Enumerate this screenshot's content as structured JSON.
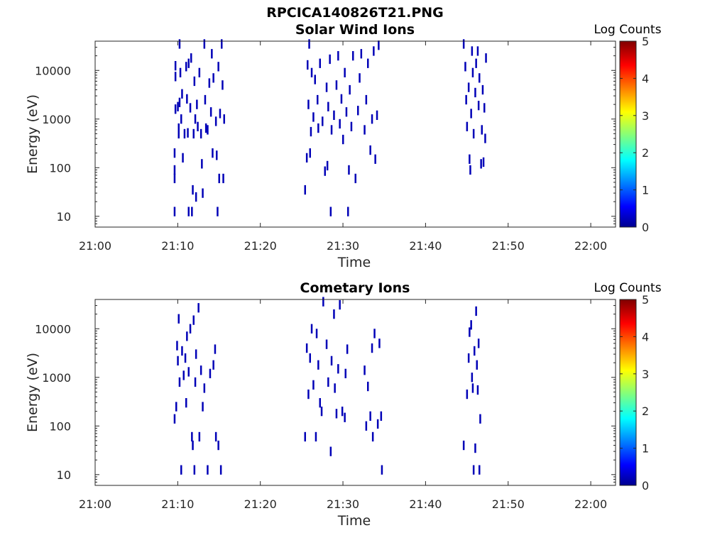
{
  "figure_title": "RPCICA140826T21.PNG",
  "chart_data": [
    {
      "type": "heatmap",
      "title": "Solar Wind Ions",
      "xlabel": "Time",
      "ylabel": "Energy (eV)",
      "x_tick_labels": [
        "21:00",
        "21:10",
        "21:20",
        "21:30",
        "21:40",
        "21:50",
        "22:00"
      ],
      "x_range_minutes": [
        0,
        63
      ],
      "y_scale": "log",
      "y_range": [
        6,
        40000
      ],
      "y_tick_values": [
        10,
        100,
        1000,
        10000
      ],
      "y_tick_labels": [
        "10",
        "100",
        "1000",
        "10000"
      ],
      "colorbar_label": "Log Counts",
      "colorbar_range": [
        0,
        5
      ],
      "colorbar_tick_labels": [
        "0",
        "1",
        "2",
        "3",
        "4",
        "5"
      ],
      "colormap": "jet",
      "grid": false,
      "points": [
        [
          9.6,
          12.5,
          0.2
        ],
        [
          9.6,
          60,
          0.2
        ],
        [
          9.6,
          90,
          0.2
        ],
        [
          9.6,
          200,
          0.2
        ],
        [
          9.7,
          1600,
          0.2
        ],
        [
          9.7,
          7500,
          0.2
        ],
        [
          9.7,
          12500,
          0.2
        ],
        [
          10.0,
          1800,
          0.2
        ],
        [
          10.1,
          650,
          0.2
        ],
        [
          10.1,
          500,
          0.2
        ],
        [
          10.2,
          35000,
          0.2
        ],
        [
          10.2,
          2200,
          0.2
        ],
        [
          10.3,
          9000,
          0.2
        ],
        [
          10.4,
          1000,
          0.2
        ],
        [
          10.5,
          3300,
          0.2
        ],
        [
          10.6,
          160,
          0.2
        ],
        [
          10.8,
          500,
          0.2
        ],
        [
          11.0,
          12000,
          0.2
        ],
        [
          11.1,
          2600,
          0.2
        ],
        [
          11.2,
          520,
          0.2
        ],
        [
          11.3,
          14000,
          0.2
        ],
        [
          11.3,
          12.5,
          0.2
        ],
        [
          11.5,
          1700,
          0.2
        ],
        [
          11.6,
          18000,
          0.2
        ],
        [
          11.7,
          12.5,
          0.2
        ],
        [
          11.8,
          35,
          0.2
        ],
        [
          11.9,
          500,
          0.2
        ],
        [
          12.0,
          6000,
          0.2
        ],
        [
          12.1,
          1000,
          0.2
        ],
        [
          12.2,
          25,
          0.2
        ],
        [
          12.3,
          2000,
          0.2
        ],
        [
          12.4,
          700,
          0.2
        ],
        [
          12.6,
          9000,
          0.2
        ],
        [
          12.8,
          500,
          0.2
        ],
        [
          12.9,
          120,
          0.2
        ],
        [
          13.0,
          30,
          0.2
        ],
        [
          13.2,
          35000,
          0.2
        ],
        [
          13.3,
          2500,
          0.2
        ],
        [
          13.4,
          650,
          0.2
        ],
        [
          13.6,
          600,
          0.3
        ],
        [
          13.8,
          5500,
          0.2
        ],
        [
          14.0,
          1400,
          0.2
        ],
        [
          14.1,
          22000,
          0.2
        ],
        [
          14.2,
          200,
          0.2
        ],
        [
          14.3,
          7000,
          0.2
        ],
        [
          14.6,
          900,
          0.2
        ],
        [
          14.7,
          180,
          0.2
        ],
        [
          14.8,
          12.5,
          0.2
        ],
        [
          14.9,
          12000,
          0.2
        ],
        [
          15.0,
          60,
          0.2
        ],
        [
          15.1,
          1300,
          0.2
        ],
        [
          15.3,
          35000,
          0.2
        ],
        [
          15.4,
          5000,
          0.2
        ],
        [
          15.5,
          60,
          0.2
        ],
        [
          15.6,
          1000,
          0.2
        ],
        [
          25.4,
          35,
          0.2
        ],
        [
          25.6,
          160,
          0.2
        ],
        [
          25.7,
          13000,
          0.2
        ],
        [
          25.8,
          2000,
          0.2
        ],
        [
          25.9,
          35000,
          0.2
        ],
        [
          26.0,
          200,
          0.2
        ],
        [
          26.1,
          550,
          0.2
        ],
        [
          26.2,
          9000,
          0.2
        ],
        [
          26.4,
          1100,
          0.2
        ],
        [
          26.6,
          6500,
          0.2
        ],
        [
          26.9,
          2500,
          0.2
        ],
        [
          27.0,
          650,
          0.2
        ],
        [
          27.2,
          14000,
          0.2
        ],
        [
          27.5,
          900,
          0.2
        ],
        [
          27.8,
          85,
          0.2
        ],
        [
          28.0,
          4500,
          0.2
        ],
        [
          28.1,
          110,
          0.2
        ],
        [
          28.2,
          1800,
          0.2
        ],
        [
          28.4,
          17000,
          0.2
        ],
        [
          28.5,
          12.5,
          0.2
        ],
        [
          28.6,
          600,
          0.2
        ],
        [
          28.9,
          1200,
          0.2
        ],
        [
          29.2,
          5000,
          0.2
        ],
        [
          29.4,
          20000,
          0.2
        ],
        [
          29.6,
          800,
          0.2
        ],
        [
          29.8,
          2600,
          0.2
        ],
        [
          30.0,
          380,
          0.2
        ],
        [
          30.2,
          9000,
          0.2
        ],
        [
          30.4,
          1400,
          0.2
        ],
        [
          30.6,
          12.5,
          0.2
        ],
        [
          30.7,
          90,
          0.2
        ],
        [
          30.8,
          4000,
          0.2
        ],
        [
          31.0,
          700,
          0.2
        ],
        [
          31.2,
          20000,
          0.2
        ],
        [
          31.5,
          60,
          0.2
        ],
        [
          31.8,
          1500,
          0.2
        ],
        [
          32.0,
          7000,
          0.2
        ],
        [
          32.2,
          22000,
          0.2
        ],
        [
          32.6,
          600,
          0.2
        ],
        [
          32.8,
          2500,
          0.2
        ],
        [
          33.0,
          14000,
          0.2
        ],
        [
          33.3,
          230,
          0.2
        ],
        [
          33.5,
          1000,
          0.2
        ],
        [
          33.7,
          25000,
          0.2
        ],
        [
          33.9,
          150,
          0.2
        ],
        [
          34.1,
          1200,
          0.2
        ],
        [
          34.3,
          33000,
          0.2
        ],
        [
          44.6,
          35000,
          0.2
        ],
        [
          44.8,
          12000,
          0.2
        ],
        [
          44.9,
          2500,
          0.2
        ],
        [
          45.0,
          700,
          0.2
        ],
        [
          45.2,
          4500,
          0.2
        ],
        [
          45.3,
          150,
          0.2
        ],
        [
          45.4,
          90,
          0.2
        ],
        [
          45.5,
          1300,
          0.2
        ],
        [
          45.6,
          25000,
          0.2
        ],
        [
          45.7,
          9000,
          0.2
        ],
        [
          45.8,
          500,
          0.2
        ],
        [
          46.0,
          3500,
          0.2
        ],
        [
          46.1,
          14000,
          0.2
        ],
        [
          46.3,
          25000,
          0.2
        ],
        [
          46.4,
          1900,
          0.2
        ],
        [
          46.5,
          7000,
          0.2
        ],
        [
          46.7,
          120,
          0.2
        ],
        [
          46.8,
          600,
          0.2
        ],
        [
          46.9,
          4000,
          0.2
        ],
        [
          47.0,
          130,
          0.2
        ],
        [
          47.1,
          1700,
          0.2
        ],
        [
          47.2,
          400,
          0.2
        ],
        [
          47.3,
          18000,
          0.2
        ]
      ]
    },
    {
      "type": "heatmap",
      "title": "Cometary Ions",
      "xlabel": "Time",
      "ylabel": "Energy (eV)",
      "x_tick_labels": [
        "21:00",
        "21:10",
        "21:20",
        "21:30",
        "21:40",
        "21:50",
        "22:00"
      ],
      "x_range_minutes": [
        0,
        63
      ],
      "y_scale": "log",
      "y_range": [
        6,
        40000
      ],
      "y_tick_values": [
        10,
        100,
        1000,
        10000
      ],
      "y_tick_labels": [
        "10",
        "100",
        "1000",
        "10000"
      ],
      "colorbar_label": "Log Counts",
      "colorbar_range": [
        0,
        5
      ],
      "colorbar_tick_labels": [
        "0",
        "1",
        "2",
        "3",
        "4",
        "5"
      ],
      "colormap": "jet",
      "grid": false,
      "points": [
        [
          9.6,
          140,
          0.2
        ],
        [
          9.8,
          250,
          0.2
        ],
        [
          9.9,
          4500,
          0.2
        ],
        [
          10.0,
          2200,
          0.2
        ],
        [
          10.1,
          16000,
          0.2
        ],
        [
          10.2,
          800,
          0.2
        ],
        [
          10.4,
          12.5,
          0.2
        ],
        [
          10.5,
          3500,
          0.2
        ],
        [
          10.7,
          1100,
          0.2
        ],
        [
          10.9,
          2500,
          0.2
        ],
        [
          11.0,
          300,
          0.2
        ],
        [
          11.1,
          7000,
          0.2
        ],
        [
          11.3,
          1300,
          0.2
        ],
        [
          11.5,
          10000,
          0.2
        ],
        [
          11.7,
          60,
          0.2
        ],
        [
          11.8,
          40,
          0.2
        ],
        [
          11.9,
          15000,
          0.2
        ],
        [
          12.0,
          12.5,
          0.2
        ],
        [
          12.1,
          800,
          0.2
        ],
        [
          12.2,
          3000,
          0.2
        ],
        [
          12.5,
          27000,
          0.2
        ],
        [
          12.6,
          60,
          0.2
        ],
        [
          12.8,
          1400,
          0.2
        ],
        [
          13.0,
          250,
          0.2
        ],
        [
          13.2,
          600,
          0.2
        ],
        [
          13.6,
          12.5,
          0.2
        ],
        [
          13.9,
          1200,
          0.2
        ],
        [
          14.3,
          1800,
          0.2
        ],
        [
          14.5,
          3800,
          0.2
        ],
        [
          14.6,
          60,
          0.2
        ],
        [
          14.9,
          40,
          0.2
        ],
        [
          15.2,
          12.5,
          0.2
        ],
        [
          25.4,
          60,
          0.2
        ],
        [
          25.6,
          4000,
          0.2
        ],
        [
          25.8,
          450,
          0.2
        ],
        [
          26.0,
          2500,
          0.2
        ],
        [
          26.2,
          10000,
          0.2
        ],
        [
          26.4,
          700,
          0.2
        ],
        [
          26.7,
          60,
          0.2
        ],
        [
          26.8,
          8000,
          0.2
        ],
        [
          27.0,
          1800,
          0.2
        ],
        [
          27.2,
          300,
          0.2
        ],
        [
          27.4,
          200,
          0.2
        ],
        [
          27.6,
          36000,
          0.2
        ],
        [
          28.0,
          4800,
          0.2
        ],
        [
          28.2,
          800,
          0.2
        ],
        [
          28.5,
          30,
          0.2
        ],
        [
          28.6,
          2200,
          0.2
        ],
        [
          28.9,
          20000,
          0.2
        ],
        [
          29.0,
          600,
          0.2
        ],
        [
          29.2,
          180,
          0.2
        ],
        [
          29.4,
          1500,
          0.2
        ],
        [
          29.6,
          31000,
          0.2
        ],
        [
          29.9,
          200,
          0.2
        ],
        [
          30.2,
          150,
          0.2
        ],
        [
          30.5,
          3800,
          0.2
        ],
        [
          30.3,
          1200,
          0.2
        ],
        [
          32.6,
          1400,
          0.2
        ],
        [
          32.8,
          100,
          0.2
        ],
        [
          33.0,
          650,
          0.2
        ],
        [
          33.3,
          160,
          0.2
        ],
        [
          33.5,
          4000,
          0.2
        ],
        [
          33.6,
          60,
          0.2
        ],
        [
          33.8,
          8000,
          0.2
        ],
        [
          34.2,
          110,
          0.2
        ],
        [
          34.4,
          5000,
          0.2
        ],
        [
          34.6,
          160,
          0.2
        ],
        [
          34.7,
          12.5,
          0.2
        ],
        [
          44.6,
          40,
          0.2
        ],
        [
          45.0,
          450,
          0.2
        ],
        [
          45.2,
          2500,
          0.2
        ],
        [
          45.3,
          8500,
          0.2
        ],
        [
          45.5,
          12000,
          0.2
        ],
        [
          45.6,
          1000,
          0.2
        ],
        [
          45.7,
          600,
          0.2
        ],
        [
          45.8,
          12.5,
          0.2
        ],
        [
          45.9,
          3500,
          0.2
        ],
        [
          46.0,
          35,
          0.2
        ],
        [
          46.1,
          23000,
          0.2
        ],
        [
          46.2,
          1800,
          0.2
        ],
        [
          46.3,
          550,
          0.2
        ],
        [
          46.4,
          5000,
          0.2
        ],
        [
          46.5,
          12.5,
          0.2
        ],
        [
          46.6,
          140,
          0.2
        ]
      ]
    }
  ]
}
